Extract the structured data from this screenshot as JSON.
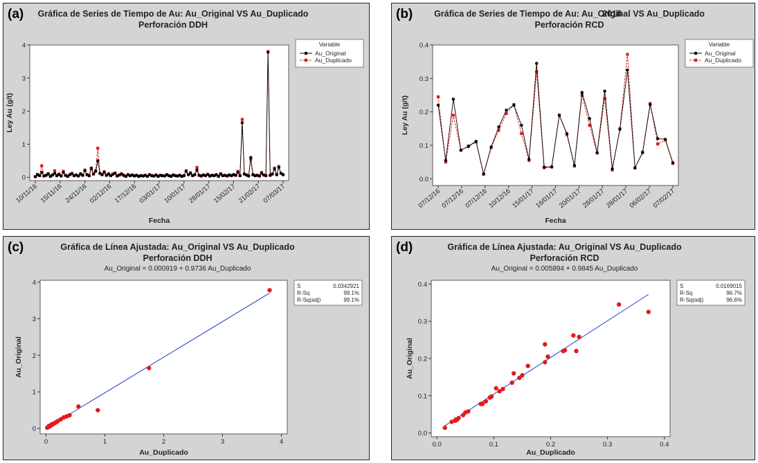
{
  "chart_data": [
    {
      "panel_tag": "(a)",
      "type": "line",
      "title": "Gráfica de Series de Tiempo de Au: Au_Original VS Au_Duplicado",
      "subtitle": "Perforación DDH",
      "xlabel": "Fecha",
      "ylabel": "Ley Au (g/t)",
      "ylim": [
        0,
        4
      ],
      "yticks": [
        0,
        1,
        2,
        3,
        4
      ],
      "x_tick_labels": [
        "10/11/16",
        "15/11/16",
        "24/11/16",
        "02/12/16",
        "17/12/16",
        "03/01/17",
        "10/01/17",
        "28/01/17",
        "15/02/17",
        "21/02/17",
        "07/03/17"
      ],
      "legend": {
        "title": "Variable",
        "position": "top-right"
      },
      "series": [
        {
          "name": "Au_Original",
          "color": "#000000",
          "marker": "circle",
          "values": [
            0.02,
            0.08,
            0.05,
            0.15,
            0.04,
            0.06,
            0.1,
            0.03,
            0.07,
            0.12,
            0.05,
            0.09,
            0.04,
            0.15,
            0.06,
            0.03,
            0.08,
            0.11,
            0.05,
            0.07,
            0.04,
            0.1,
            0.06,
            0.2,
            0.08,
            0.05,
            0.28,
            0.1,
            0.18,
            0.5,
            0.12,
            0.08,
            0.15,
            0.06,
            0.1,
            0.05,
            0.09,
            0.12,
            0.04,
            0.07,
            0.1,
            0.06,
            0.03,
            0.08,
            0.05,
            0.07,
            0.04,
            0.06,
            0.03,
            0.05,
            0.04,
            0.06,
            0.03,
            0.08,
            0.05,
            0.04,
            0.07,
            0.03,
            0.06,
            0.05,
            0.04,
            0.08,
            0.05,
            0.03,
            0.07,
            0.05,
            0.04,
            0.06,
            0.03,
            0.05,
            0.18,
            0.08,
            0.12,
            0.05,
            0.08,
            0.22,
            0.06,
            0.04,
            0.07,
            0.05,
            0.09,
            0.04,
            0.06,
            0.05,
            0.08,
            0.03,
            0.1,
            0.05,
            0.06,
            0.04,
            0.07,
            0.05,
            0.08,
            0.06,
            0.15,
            0.05,
            1.65,
            0.1,
            0.07,
            0.04,
            0.6,
            0.08,
            0.05,
            0.06,
            0.04,
            0.12,
            0.07,
            0.05,
            3.78,
            0.06,
            0.1,
            0.25,
            0.08,
            0.3,
            0.12,
            0.08
          ]
        },
        {
          "name": "Au_Duplicado",
          "color": "#e31a1c",
          "marker": "square",
          "values": [
            0.02,
            0.09,
            0.05,
            0.35,
            0.04,
            0.06,
            0.11,
            0.03,
            0.07,
            0.2,
            0.05,
            0.1,
            0.04,
            0.18,
            0.06,
            0.03,
            0.08,
            0.12,
            0.05,
            0.07,
            0.04,
            0.11,
            0.06,
            0.22,
            0.08,
            0.05,
            0.25,
            0.1,
            0.2,
            0.88,
            0.12,
            0.08,
            0.17,
            0.06,
            0.11,
            0.05,
            0.1,
            0.13,
            0.04,
            0.07,
            0.11,
            0.06,
            0.03,
            0.08,
            0.05,
            0.07,
            0.04,
            0.06,
            0.03,
            0.05,
            0.04,
            0.06,
            0.03,
            0.08,
            0.05,
            0.04,
            0.07,
            0.03,
            0.06,
            0.05,
            0.04,
            0.08,
            0.05,
            0.03,
            0.07,
            0.05,
            0.04,
            0.06,
            0.03,
            0.05,
            0.2,
            0.08,
            0.14,
            0.05,
            0.08,
            0.3,
            0.06,
            0.04,
            0.07,
            0.05,
            0.09,
            0.04,
            0.06,
            0.05,
            0.08,
            0.03,
            0.11,
            0.05,
            0.06,
            0.04,
            0.07,
            0.05,
            0.08,
            0.06,
            0.18,
            0.05,
            1.75,
            0.1,
            0.07,
            0.04,
            0.55,
            0.08,
            0.05,
            0.06,
            0.04,
            0.15,
            0.07,
            0.05,
            3.8,
            0.06,
            0.1,
            0.28,
            0.08,
            0.33,
            0.12,
            0.08
          ]
        }
      ]
    },
    {
      "panel_tag": "(b)",
      "type": "line",
      "title": "Gráfica de Series de Tiempo de Au: Au_Original VS Au_Duplicado",
      "subtitle": "Perforación RCD",
      "overlay_text": "2018",
      "xlabel": "Fecha",
      "ylabel": "Ley Au (g/t)",
      "ylim": [
        0,
        0.4
      ],
      "yticks": [
        0.0,
        0.1,
        0.2,
        0.3,
        0.4
      ],
      "ytick_labels": [
        "0.0",
        "0.1",
        "0.2",
        "0.3",
        "0.4"
      ],
      "x_tick_labels": [
        "07/12/16",
        "07/12/16",
        "07/12/16",
        "10/12/16",
        "15/01/17",
        "16/01/17",
        "20/01/17",
        "28/01/17",
        "28/01/17",
        "06/02/17",
        "07/02/17"
      ],
      "legend": {
        "title": "Variable",
        "position": "top-right"
      },
      "series": [
        {
          "name": "Au_Original",
          "color": "#000000",
          "marker": "circle",
          "values": [
            0.22,
            0.055,
            0.238,
            0.085,
            0.098,
            0.112,
            0.014,
            0.095,
            0.155,
            0.205,
            0.22,
            0.16,
            0.058,
            0.345,
            0.035,
            0.036,
            0.19,
            0.135,
            0.04,
            0.258,
            0.18,
            0.078,
            0.262,
            0.03,
            0.148,
            0.325,
            0.033,
            0.078,
            0.222,
            0.12,
            0.118,
            0.048
          ]
        },
        {
          "name": "Au_Duplicado",
          "color": "#e31a1c",
          "marker": "square",
          "values": [
            0.245,
            0.05,
            0.19,
            0.086,
            0.096,
            0.11,
            0.014,
            0.093,
            0.145,
            0.195,
            0.222,
            0.135,
            0.055,
            0.32,
            0.033,
            0.035,
            0.19,
            0.132,
            0.038,
            0.25,
            0.16,
            0.077,
            0.24,
            0.026,
            0.15,
            0.372,
            0.032,
            0.08,
            0.225,
            0.104,
            0.116,
            0.046
          ]
        }
      ]
    },
    {
      "panel_tag": "(c)",
      "type": "scatter",
      "title": "Gráfica de Línea Ajustada: Au_Original VS Au_Duplicado",
      "subtitle": "Perforación DDH",
      "equation": "Au_Original = 0.000919 + 0.9736 Au_Duplicado",
      "fit": {
        "intercept": 0.000919,
        "slope": 0.9736,
        "color": "#1f3fbf"
      },
      "xlabel": "Au_Duplicado",
      "ylabel": "Au_Original",
      "xlim": [
        -0.1,
        4.1
      ],
      "ylim": [
        -0.15,
        4.05
      ],
      "xticks": [
        0,
        1,
        2,
        3,
        4
      ],
      "yticks": [
        0,
        1,
        2,
        3,
        4
      ],
      "stats": [
        {
          "label": "S",
          "value": "0.0342921"
        },
        {
          "label": "R-Sq",
          "value": "99.1%"
        },
        {
          "label": "R-Sq(adj)",
          "value": "99.1%"
        }
      ],
      "points_color": "#e31a1c",
      "x": [
        0.02,
        0.03,
        0.04,
        0.05,
        0.06,
        0.07,
        0.08,
        0.1,
        0.12,
        0.15,
        0.18,
        0.2,
        0.25,
        0.3,
        0.35,
        0.4,
        0.55,
        0.88,
        1.75,
        3.8,
        0.05,
        0.1
      ],
      "y": [
        0.02,
        0.03,
        0.04,
        0.05,
        0.06,
        0.07,
        0.08,
        0.1,
        0.12,
        0.15,
        0.18,
        0.2,
        0.25,
        0.3,
        0.33,
        0.36,
        0.6,
        0.5,
        1.65,
        3.78,
        0.07,
        0.12
      ]
    },
    {
      "panel_tag": "(d)",
      "type": "scatter",
      "title": "Gráfica de Línea Ajustada: Au_Original VS Au_Duplicado",
      "subtitle": "Perforación RCD",
      "equation": "Au_Original = 0.005894 + 0.9845 Au_Duplicado",
      "fit": {
        "intercept": 0.005894,
        "slope": 0.9845,
        "color": "#1f3fbf"
      },
      "xlabel": "Au_Duplicado",
      "ylabel": "Au_Original",
      "xlim": [
        -0.01,
        0.41
      ],
      "ylim": [
        -0.01,
        0.41
      ],
      "xticks": [
        0.0,
        0.1,
        0.2,
        0.3,
        0.4
      ],
      "xtick_labels": [
        "0.0",
        "0.1",
        "0.2",
        "0.3",
        "0.4"
      ],
      "yticks": [
        0.0,
        0.1,
        0.2,
        0.3,
        0.4
      ],
      "ytick_labels": [
        "0.0",
        "0.1",
        "0.2",
        "0.3",
        "0.4"
      ],
      "stats": [
        {
          "label": "S",
          "value": "0.0169015"
        },
        {
          "label": "R-Sq",
          "value": "96.7%"
        },
        {
          "label": "R-Sq(adj)",
          "value": "96.6%"
        }
      ],
      "points_color": "#e31a1c",
      "x": [
        0.014,
        0.026,
        0.032,
        0.033,
        0.035,
        0.038,
        0.046,
        0.05,
        0.055,
        0.077,
        0.08,
        0.086,
        0.093,
        0.096,
        0.104,
        0.11,
        0.116,
        0.132,
        0.135,
        0.145,
        0.15,
        0.16,
        0.19,
        0.19,
        0.195,
        0.222,
        0.225,
        0.24,
        0.245,
        0.25,
        0.32,
        0.372
      ],
      "y": [
        0.014,
        0.03,
        0.033,
        0.036,
        0.035,
        0.04,
        0.048,
        0.055,
        0.058,
        0.078,
        0.078,
        0.085,
        0.095,
        0.098,
        0.12,
        0.112,
        0.118,
        0.135,
        0.16,
        0.148,
        0.155,
        0.18,
        0.238,
        0.19,
        0.205,
        0.22,
        0.222,
        0.262,
        0.22,
        0.258,
        0.345,
        0.325
      ]
    }
  ]
}
